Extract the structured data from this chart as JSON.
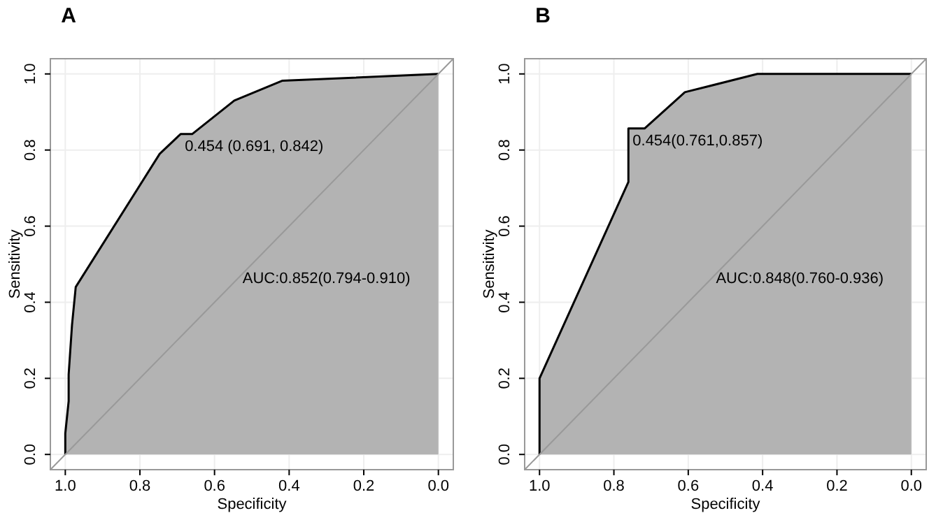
{
  "chart_data": [
    {
      "type": "line",
      "title": "A",
      "xlabel": "Specificity",
      "ylabel": "Sensitivity",
      "xlim": [
        1.04,
        -0.04
      ],
      "ylim": [
        -0.04,
        1.04
      ],
      "xticks": [
        {
          "value": 1,
          "label": "1.0"
        },
        {
          "value": 0.8,
          "label": "0.8"
        },
        {
          "value": 0.6,
          "label": "0.6"
        },
        {
          "value": 0.4,
          "label": "0.4"
        },
        {
          "value": 0.2,
          "label": "0.2"
        },
        {
          "value": 0,
          "label": "0.0"
        }
      ],
      "yticks": [
        {
          "value": 0,
          "label": "0.0"
        },
        {
          "value": 0.2,
          "label": "0.2"
        },
        {
          "value": 0.4,
          "label": "0.4"
        },
        {
          "value": 0.6,
          "label": "0.6"
        },
        {
          "value": 0.8,
          "label": "0.8"
        },
        {
          "value": 1,
          "label": "1.0"
        }
      ],
      "grid": true,
      "series": [
        {
          "type": "line",
          "color": "#000000",
          "x": [
            1,
            1,
            0.991,
            0.991,
            0.982,
            0.972,
            0.747,
            0.691,
            0.66,
            0.547,
            0.419,
            0
          ],
          "values": [
            0,
            0.055,
            0.14,
            0.21,
            0.34,
            0.44,
            0.79,
            0.842,
            0.842,
            0.93,
            0.982,
            1
          ]
        },
        {
          "type": "line",
          "color": "#999999",
          "x": [
            1.04,
            -0.04
          ],
          "values": [
            -0.04,
            1.04
          ]
        }
      ],
      "annotations": [
        {
          "text": "0.454 (0.691, 0.842)",
          "x": 0.691,
          "y": 0.842
        },
        "AUC:0.852(0.794-0.910)"
      ]
    },
    {
      "type": "line",
      "title": "B",
      "xlabel": "Specificity",
      "ylabel": "Sensitivity",
      "xlim": [
        1.04,
        -0.04
      ],
      "ylim": [
        -0.04,
        1.04
      ],
      "xticks": [
        {
          "value": 1,
          "label": "1.0"
        },
        {
          "value": 0.8,
          "label": "0.8"
        },
        {
          "value": 0.6,
          "label": "0.6"
        },
        {
          "value": 0.4,
          "label": "0.4"
        },
        {
          "value": 0.2,
          "label": "0.2"
        },
        {
          "value": 0,
          "label": "0.0"
        }
      ],
      "yticks": [
        {
          "value": 0,
          "label": "0.0"
        },
        {
          "value": 0.2,
          "label": "0.2"
        },
        {
          "value": 0.4,
          "label": "0.4"
        },
        {
          "value": 0.6,
          "label": "0.6"
        },
        {
          "value": 0.8,
          "label": "0.8"
        },
        {
          "value": 1,
          "label": "1.0"
        }
      ],
      "grid": true,
      "series": [
        {
          "type": "line",
          "color": "#000000",
          "x": [
            1,
            1,
            0.761,
            0.761,
            0.717,
            0.609,
            0.414,
            0
          ],
          "values": [
            0,
            0.2,
            0.716,
            0.857,
            0.857,
            0.952,
            1,
            1
          ]
        },
        {
          "type": "line",
          "color": "#999999",
          "x": [
            1.04,
            -0.04
          ],
          "values": [
            -0.04,
            1.04
          ]
        }
      ],
      "annotations": [
        {
          "text": "0.454(0.761,0.857)",
          "x": 0.761,
          "y": 0.857
        },
        "AUC:0.848(0.760-0.936)"
      ]
    }
  ]
}
